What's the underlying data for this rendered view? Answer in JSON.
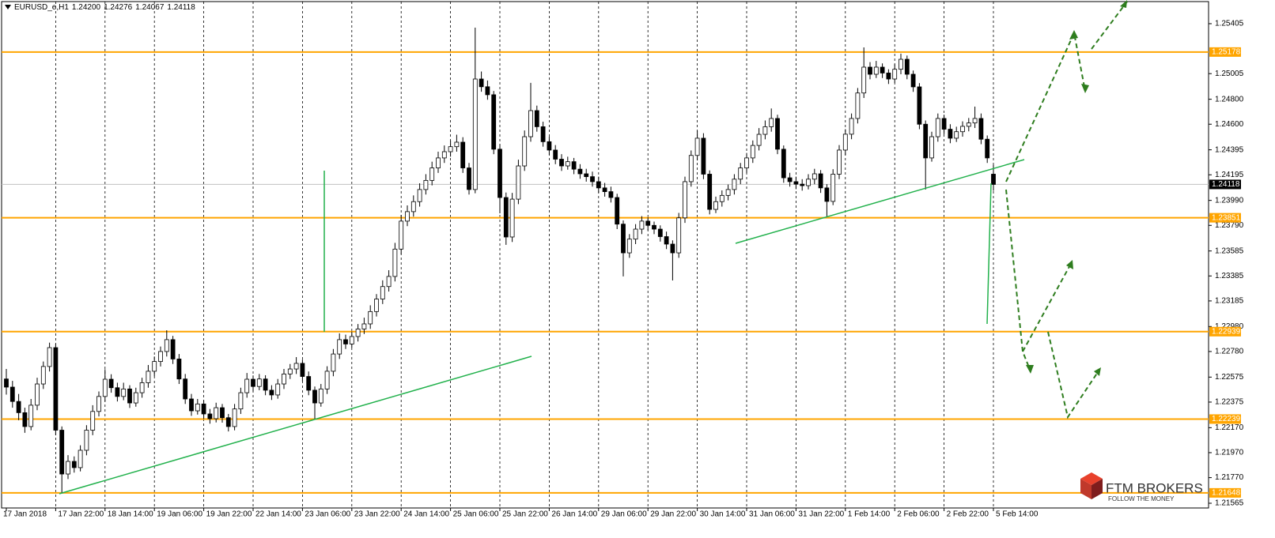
{
  "chart_data": {
    "type": "candlestick",
    "symbol": "EURUSD_e,H1",
    "header_prices": [
      "1.24200",
      "1.24276",
      "1.24067",
      "1.24118"
    ],
    "categories": [
      "17 Jan 2018",
      null,
      null,
      null,
      null,
      null,
      null,
      null,
      "17 Jan 22:00",
      null,
      null,
      null,
      null,
      null,
      null,
      null,
      "18 Jan 14:00",
      null,
      null,
      null,
      null,
      null,
      null,
      null,
      "19 Jan 06:00",
      null,
      null,
      null,
      null,
      null,
      null,
      null,
      "19 Jan 22:00",
      null,
      null,
      null,
      null,
      null,
      null,
      null,
      "22 Jan 14:00",
      null,
      null,
      null,
      null,
      null,
      null,
      null,
      "23 Jan 06:00",
      null,
      null,
      null,
      null,
      null,
      null,
      null,
      "23 Jan 22:00",
      null,
      null,
      null,
      null,
      null,
      null,
      null,
      "24 Jan 14:00",
      null,
      null,
      null,
      null,
      null,
      null,
      null,
      "25 Jan 06:00",
      null,
      null,
      null,
      null,
      null,
      null,
      null,
      "25 Jan 22:00",
      null,
      null,
      null,
      null,
      null,
      null,
      null,
      "26 Jan 14:00",
      null,
      null,
      null,
      null,
      null,
      null,
      null,
      "29 Jan 06:00",
      null,
      null,
      null,
      null,
      null,
      null,
      null,
      "29 Jan 22:00",
      null,
      null,
      null,
      null,
      null,
      null,
      null,
      "30 Jan 14:00",
      null,
      null,
      null,
      null,
      null,
      null,
      null,
      "31 Jan 06:00",
      null,
      null,
      null,
      null,
      null,
      null,
      null,
      "31 Jan 22:00",
      null,
      null,
      null,
      null,
      null,
      null,
      null,
      "1 Feb 14:00",
      null,
      null,
      null,
      null,
      null,
      null,
      null,
      "2 Feb 06:00",
      null,
      null,
      null,
      null,
      null,
      null,
      null,
      "2 Feb 22:00",
      null,
      null,
      null,
      null,
      null,
      null,
      null,
      "5 Feb 14:00"
    ],
    "open": [
      1.2256,
      1.22495,
      1.2238,
      1.2229,
      1.22179,
      1.2235,
      1.2252,
      1.2266,
      1.22811,
      1.2215,
      1.21799,
      1.219,
      1.2185,
      1.21989,
      1.2215,
      1.223,
      1.2242,
      1.22558,
      1.2249,
      1.2242,
      1.2248,
      1.22368,
      1.2245,
      1.2253,
      1.22622,
      1.227,
      1.2278,
      1.22875,
      1.2272,
      1.2256,
      1.224,
      1.22305,
      1.2236,
      1.2228,
      1.22242,
      1.2233,
      1.2225,
      1.22179,
      1.2232,
      1.2245,
      1.22558,
      1.225,
      1.2256,
      1.2247,
      1.22432,
      1.2252,
      1.226,
      1.2264,
      1.22685,
      1.2258,
      1.2247,
      1.22368,
      1.2248,
      1.22622,
      1.2276,
      1.22875,
      1.2284,
      1.229,
      1.2296,
      1.23001,
      1.231,
      1.232,
      1.233,
      1.23381,
      1.236,
      1.23824,
      1.239,
      1.2398,
      1.24077,
      1.2415,
      1.2425,
      1.2433,
      1.2438,
      1.2442,
      1.24456,
      1.2425,
      1.24077,
      1.24962,
      1.249,
      1.24836,
      1.244,
      1.24013,
      1.23697,
      1.24,
      1.24266,
      1.245,
      1.24709,
      1.2458,
      1.2446,
      1.24393,
      1.2432,
      1.24266,
      1.243,
      1.2424,
      1.24203,
      1.2418,
      1.2414,
      1.2409,
      1.2406,
      1.24013,
      1.238,
      1.2357,
      1.2368,
      1.2376,
      1.23824,
      1.2379,
      1.2376,
      1.237,
      1.2364,
      1.2357,
      1.2385,
      1.2414,
      1.2435,
      1.24488,
      1.242,
      1.23918,
      1.2398,
      1.2403,
      1.24077,
      1.2416,
      1.2425,
      1.2433,
      1.2443,
      1.24519,
      1.2458,
      1.24646,
      1.244,
      1.24171,
      1.2414,
      1.2412,
      1.24108,
      1.2416,
      1.24203,
      1.2409,
      1.23982,
      1.242,
      1.24393,
      1.2452,
      1.24646,
      1.2485,
      1.25057,
      1.25,
      1.25057,
      1.2501,
      1.24962,
      1.2504,
      1.2512,
      1.25,
      1.24899,
      1.246,
      1.2433,
      1.245,
      1.24646,
      1.2456,
      1.24488,
      1.2454,
      1.24583,
      1.2461,
      1.24646,
      1.2448,
      1.242
    ],
    "high": [
      1.2264,
      1.22545,
      1.2244,
      1.2233,
      1.224,
      1.2257,
      1.227,
      1.22851,
      1.22841,
      1.2218,
      1.2195,
      1.2194,
      1.22029,
      1.2219,
      1.2235,
      1.2246,
      1.22638,
      1.22598,
      1.2253,
      1.2253,
      1.2251,
      1.2249,
      1.2257,
      1.22672,
      1.2274,
      1.2282,
      1.2295,
      1.22905,
      1.2276,
      1.226,
      1.2244,
      1.224,
      1.2239,
      1.2232,
      1.2237,
      1.2236,
      1.2228,
      1.2236,
      1.2249,
      1.22608,
      1.22588,
      1.226,
      1.2259,
      1.2251,
      1.2256,
      1.2264,
      1.2268,
      1.22735,
      1.22715,
      1.2262,
      1.225,
      1.2252,
      1.22662,
      1.228,
      1.22925,
      1.22915,
      1.2294,
      1.23,
      1.23051,
      1.2315,
      1.2324,
      1.2335,
      1.23431,
      1.2365,
      1.23874,
      1.2395,
      1.2403,
      1.24127,
      1.242,
      1.243,
      1.2438,
      1.2443,
      1.2447,
      1.24516,
      1.24496,
      1.2429,
      1.25373,
      1.25022,
      1.2495,
      1.24866,
      1.2444,
      1.24053,
      1.2405,
      1.24316,
      1.2455,
      1.24931,
      1.24749,
      1.2462,
      1.245,
      1.24433,
      1.2436,
      1.2434,
      1.2433,
      1.2428,
      1.24243,
      1.2422,
      1.2418,
      1.2413,
      1.241,
      1.24043,
      1.2383,
      1.2372,
      1.238,
      1.23864,
      1.23854,
      1.2382,
      1.2379,
      1.2374,
      1.2367,
      1.2389,
      1.2418,
      1.2439,
      1.24548,
      1.24528,
      1.2423,
      1.2402,
      1.2407,
      1.24117,
      1.242,
      1.2429,
      1.2437,
      1.2447,
      1.24569,
      1.2463,
      1.24726,
      1.24676,
      1.2443,
      1.24211,
      1.2418,
      1.2416,
      1.242,
      1.24243,
      1.24233,
      1.2412,
      1.2424,
      1.24433,
      1.2456,
      1.24686,
      1.2489,
      1.25215,
      1.25097,
      1.25107,
      1.25087,
      1.2504,
      1.2508,
      1.25165,
      1.2515,
      1.2503,
      1.24929,
      1.2463,
      1.2454,
      1.24686,
      1.24676,
      1.246,
      1.2458,
      1.24623,
      1.2465,
      1.24741,
      1.24686,
      1.2451,
      1.24276
    ],
    "low": [
      1.22435,
      1.2233,
      1.2223,
      1.22129,
      1.22149,
      1.2231,
      1.2248,
      1.2262,
      1.2211,
      1.21648,
      1.21759,
      1.2181,
      1.2182,
      1.21949,
      1.2211,
      1.2226,
      1.2238,
      1.2245,
      1.2238,
      1.2239,
      1.22328,
      1.22338,
      1.2241,
      1.2249,
      1.22582,
      1.2266,
      1.2274,
      1.2268,
      1.2252,
      1.2236,
      1.22265,
      1.22275,
      1.2224,
      1.22202,
      1.22212,
      1.2221,
      1.2214,
      1.22149,
      1.2228,
      1.2241,
      1.2246,
      1.2247,
      1.2243,
      1.22392,
      1.22402,
      1.2248,
      1.2256,
      1.226,
      1.2254,
      1.2243,
      1.22242,
      1.22338,
      1.2244,
      1.22582,
      1.2272,
      1.228,
      1.2281,
      1.2286,
      1.2292,
      1.22961,
      1.2306,
      1.2316,
      1.2326,
      1.23341,
      1.2356,
      1.23784,
      1.2386,
      1.2394,
      1.24037,
      1.2411,
      1.2421,
      1.2429,
      1.2434,
      1.2438,
      1.2421,
      1.24037,
      1.24047,
      1.2486,
      1.24796,
      1.2436,
      1.23887,
      1.23634,
      1.23657,
      1.2396,
      1.24226,
      1.2446,
      1.2454,
      1.2442,
      1.24353,
      1.2428,
      1.24226,
      1.24236,
      1.242,
      1.24163,
      1.2414,
      1.241,
      1.2405,
      1.2402,
      1.23973,
      1.2376,
      1.23381,
      1.2353,
      1.2364,
      1.2372,
      1.2375,
      1.2372,
      1.2366,
      1.236,
      1.23349,
      1.2353,
      1.2381,
      1.241,
      1.2431,
      1.2416,
      1.23878,
      1.23888,
      1.2394,
      1.2399,
      1.24037,
      1.2412,
      1.2421,
      1.2429,
      1.2439,
      1.24479,
      1.2454,
      1.2436,
      1.24131,
      1.241,
      1.2408,
      1.24068,
      1.24078,
      1.2412,
      1.2405,
      1.23855,
      1.23952,
      1.2416,
      1.24353,
      1.2448,
      1.24606,
      1.2481,
      1.2496,
      1.2497,
      1.2497,
      1.24922,
      1.24932,
      1.25,
      1.2496,
      1.24859,
      1.2456,
      1.24077,
      1.243,
      1.2446,
      1.2452,
      1.24448,
      1.24458,
      1.245,
      1.24543,
      1.2457,
      1.2444,
      1.2429,
      1.24067
    ],
    "close": [
      1.22495,
      1.2238,
      1.2229,
      1.22179,
      1.2235,
      1.2252,
      1.2266,
      1.22811,
      1.2215,
      1.21799,
      1.219,
      1.2185,
      1.21989,
      1.2215,
      1.223,
      1.2242,
      1.22558,
      1.2249,
      1.2242,
      1.2248,
      1.22368,
      1.2245,
      1.2253,
      1.22622,
      1.227,
      1.2278,
      1.22875,
      1.2272,
      1.2256,
      1.224,
      1.22305,
      1.2236,
      1.2228,
      1.22242,
      1.2233,
      1.2225,
      1.22179,
      1.2232,
      1.2245,
      1.22558,
      1.225,
      1.2256,
      1.2247,
      1.22432,
      1.2252,
      1.226,
      1.2264,
      1.22685,
      1.2258,
      1.2247,
      1.22368,
      1.2248,
      1.22622,
      1.2276,
      1.22875,
      1.2284,
      1.229,
      1.2296,
      1.23001,
      1.231,
      1.232,
      1.233,
      1.23381,
      1.236,
      1.23824,
      1.239,
      1.2398,
      1.24077,
      1.2415,
      1.2425,
      1.2433,
      1.2438,
      1.2442,
      1.24456,
      1.2425,
      1.24077,
      1.24962,
      1.249,
      1.24836,
      1.244,
      1.24013,
      1.23697,
      1.24,
      1.24266,
      1.245,
      1.24709,
      1.2458,
      1.2446,
      1.24393,
      1.2432,
      1.24266,
      1.243,
      1.2424,
      1.24203,
      1.2418,
      1.2414,
      1.2409,
      1.2406,
      1.24013,
      1.238,
      1.2357,
      1.2368,
      1.2376,
      1.23824,
      1.2379,
      1.2376,
      1.237,
      1.2364,
      1.2357,
      1.2385,
      1.2414,
      1.2435,
      1.24488,
      1.242,
      1.23918,
      1.2398,
      1.2403,
      1.24077,
      1.2416,
      1.2425,
      1.2433,
      1.2443,
      1.24519,
      1.2458,
      1.24646,
      1.244,
      1.24171,
      1.2414,
      1.2412,
      1.24108,
      1.2416,
      1.24203,
      1.2409,
      1.23982,
      1.242,
      1.24393,
      1.2452,
      1.24646,
      1.2485,
      1.25057,
      1.25,
      1.25057,
      1.2501,
      1.24962,
      1.2504,
      1.2512,
      1.25,
      1.24899,
      1.246,
      1.2433,
      1.245,
      1.24646,
      1.2456,
      1.24488,
      1.2454,
      1.24583,
      1.2461,
      1.24646,
      1.2448,
      1.2433,
      1.24118
    ],
    "up_color": "#ffffff",
    "down_color": "#000000",
    "wick_color": "#000000",
    "ylim": [
      1.21527,
      1.25582
    ],
    "yticks": [
      1.25405,
      1.25005,
      {
        "value": 1.248,
        "label": "1.24800"
      },
      {
        "value": 1.246,
        "label": "1.24600"
      },
      1.24395,
      1.24195,
      {
        "value": 1.2399,
        "label": "1.23990"
      },
      {
        "value": 1.2379,
        "label": "1.23790"
      },
      1.23585,
      1.23385,
      1.23185,
      {
        "value": 1.2298,
        "label": "1.22980"
      },
      {
        "value": 1.2278,
        "label": "1.22780"
      },
      1.22575,
      1.22375,
      {
        "value": 1.2217,
        "label": "1.22170"
      },
      {
        "value": 1.2197,
        "label": "1.21970"
      },
      {
        "value": 1.2177,
        "label": "1.21770"
      },
      1.21565
    ],
    "levels": [
      1.25178,
      1.23851,
      1.22939,
      1.22239,
      1.21648
    ],
    "level_color": "#ffa500",
    "last_price": 1.24118,
    "grid": true
  },
  "branding": {
    "name": "FTM BROKERS",
    "tagline": "FOLLOW THE MONEY"
  }
}
